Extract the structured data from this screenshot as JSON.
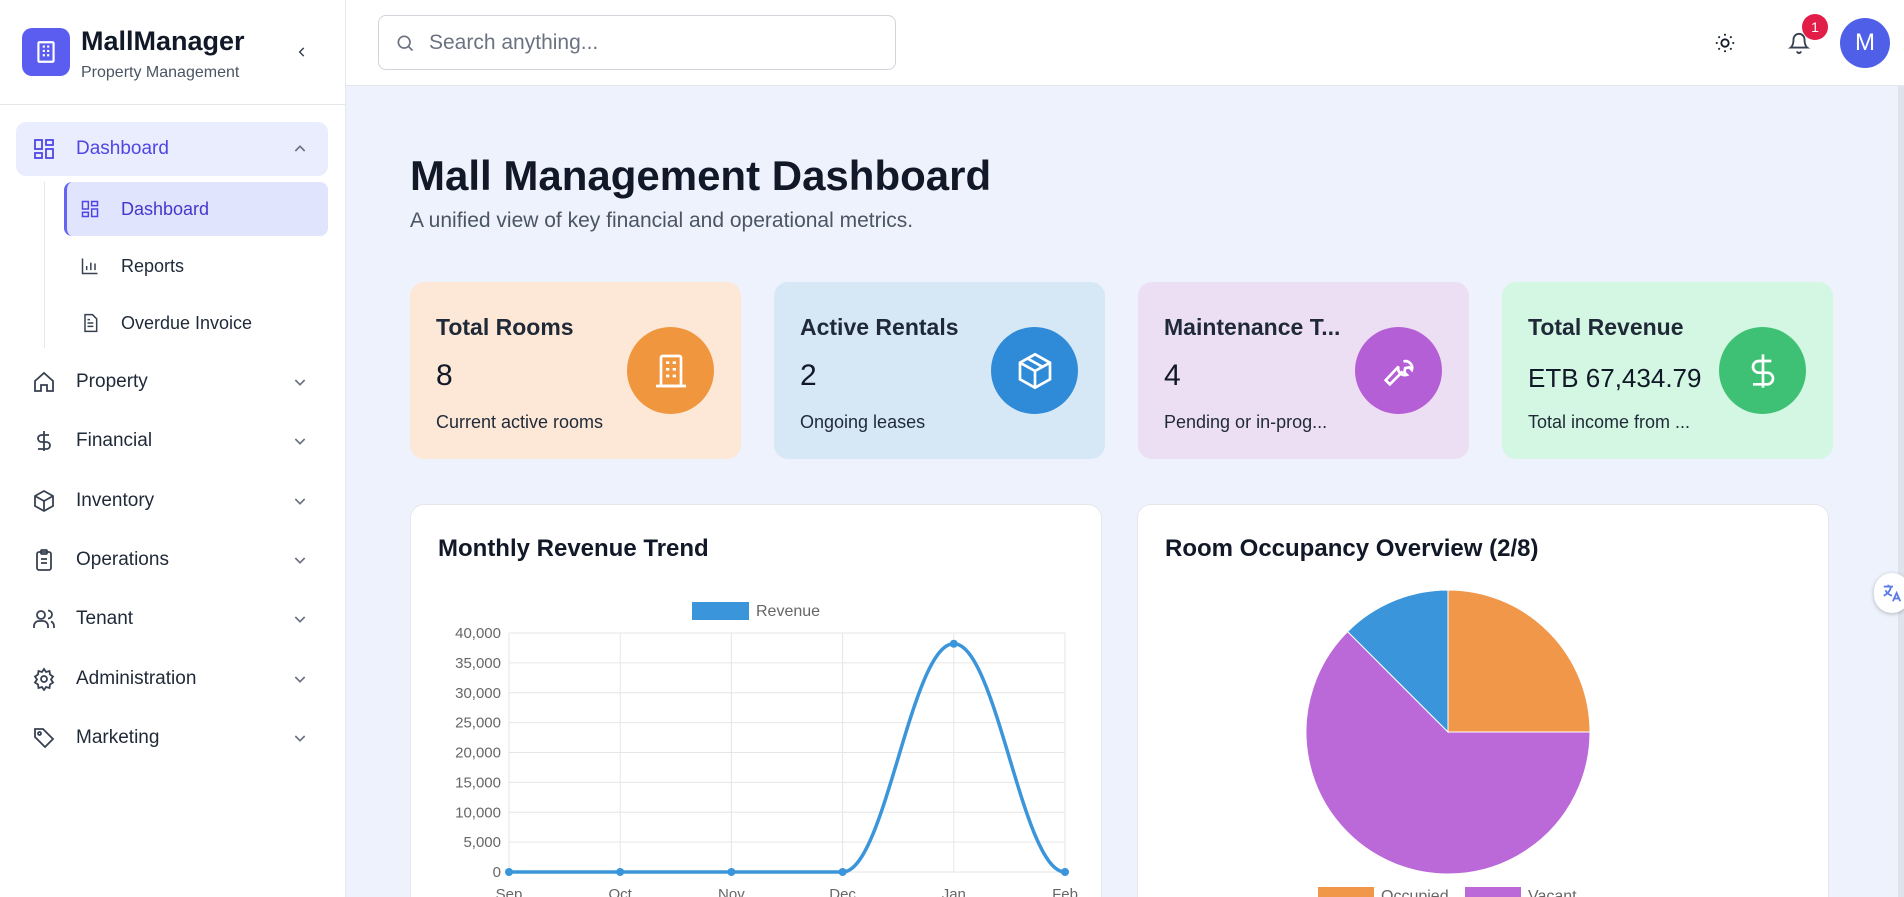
{
  "brand": {
    "name": "MallManager",
    "subtitle": "Property Management"
  },
  "sidebar": {
    "items": [
      {
        "label": "Dashboard",
        "icon": "grid-icon",
        "expanded": true
      },
      {
        "label": "Property",
        "icon": "home-icon"
      },
      {
        "label": "Financial",
        "icon": "dollar-icon"
      },
      {
        "label": "Inventory",
        "icon": "box-icon"
      },
      {
        "label": "Operations",
        "icon": "clipboard-icon"
      },
      {
        "label": "Tenant",
        "icon": "users-icon"
      },
      {
        "label": "Administration",
        "icon": "gear-icon"
      },
      {
        "label": "Marketing",
        "icon": "tag-icon"
      }
    ],
    "sub_items": [
      {
        "label": "Dashboard",
        "icon": "grid-icon",
        "active": true
      },
      {
        "label": "Reports",
        "icon": "bar-chart-icon"
      },
      {
        "label": "Overdue Invoice",
        "icon": "document-icon"
      }
    ]
  },
  "topbar": {
    "search_placeholder": "Search anything...",
    "notification_count": "1",
    "avatar_initial": "M"
  },
  "page": {
    "title": "Mall Management Dashboard",
    "subtitle": "A unified view of key financial and operational metrics."
  },
  "cards": [
    {
      "title": "Total Rooms",
      "value": "8",
      "desc": "Current active rooms",
      "icon": "building-icon",
      "bg": "#fde8d7",
      "icon_bg": "#f0963f"
    },
    {
      "title": "Active Rentals",
      "value": "2",
      "desc": "Ongoing leases",
      "icon": "package-icon",
      "bg": "#d6e8f6",
      "icon_bg": "#2f8bd8"
    },
    {
      "title": "Maintenance T...",
      "value": "4",
      "desc": "Pending or in-prog...",
      "icon": "wrench-icon",
      "bg": "#eddff3",
      "icon_bg": "#b55fd6"
    },
    {
      "title": "Total Revenue",
      "value": "ETB 67,434.79",
      "desc": "Total income from ...",
      "icon": "dollar-icon",
      "bg": "#d3f7e2",
      "icon_bg": "#3fc175"
    }
  ],
  "panels": {
    "revenue_title": "Monthly Revenue Trend",
    "occupancy_title": "Room Occupancy Overview (2/8)"
  },
  "chart_data": [
    {
      "type": "line",
      "title": "Monthly Revenue Trend",
      "categories": [
        "Sep",
        "Oct",
        "Nov",
        "Dec",
        "Jan",
        "Feb"
      ],
      "series": [
        {
          "name": "Revenue",
          "values": [
            0,
            0,
            0,
            0,
            38200,
            0
          ],
          "color": "#3b95db"
        }
      ],
      "yticks": [
        "40,000",
        "35,000",
        "30,000",
        "25,000",
        "20,000",
        "15,000",
        "10,000",
        "5,000",
        "0"
      ],
      "ylim": [
        0,
        40000
      ],
      "grid": true,
      "legend": "top"
    },
    {
      "type": "pie",
      "title": "Room Occupancy Overview (2/8)",
      "categories": [
        "Occupied",
        "Vacant",
        ""
      ],
      "values": [
        2,
        5,
        1
      ],
      "colors": [
        "#f0974a",
        "#bb68d9",
        "#3b95db"
      ],
      "legend": "bottom"
    }
  ]
}
